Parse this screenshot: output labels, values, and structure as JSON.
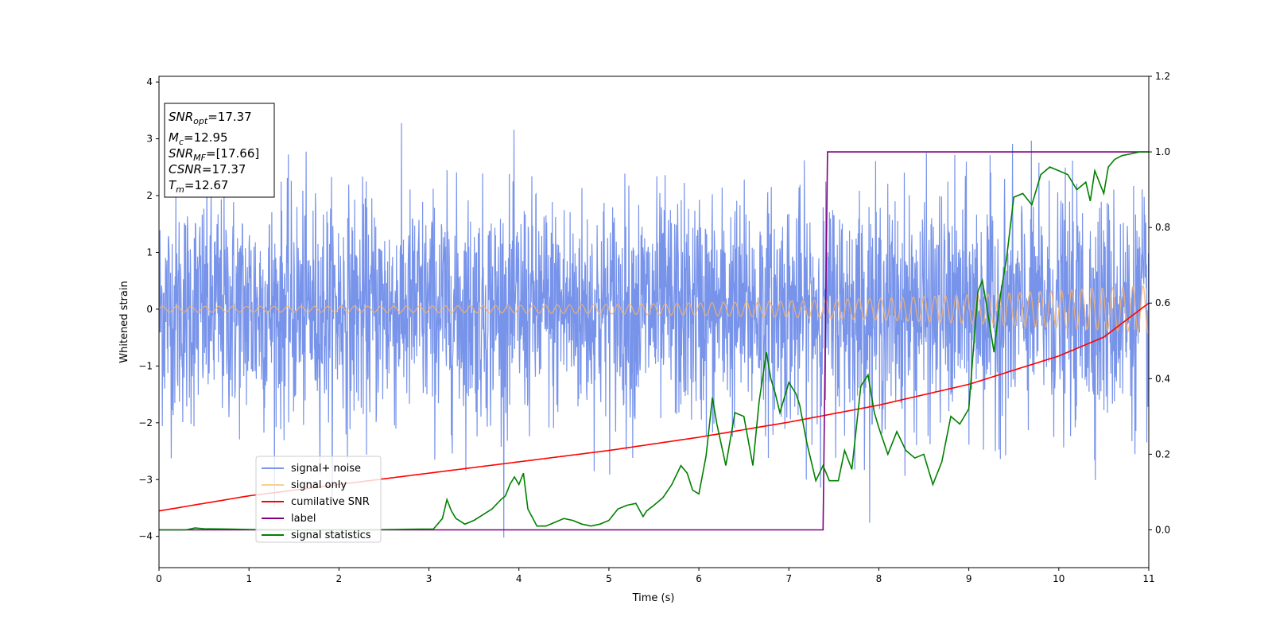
{
  "chart_data": {
    "type": "line",
    "xlabel": "Time (s)",
    "ylabel": "Whitened strain",
    "xlim": [
      0,
      11
    ],
    "ylim": [
      -4.55,
      4.1
    ],
    "y2lim": [
      -0.1,
      1.2
    ],
    "xticks": [
      "0",
      "1",
      "2",
      "3",
      "4",
      "5",
      "6",
      "7",
      "8",
      "9",
      "10",
      "11"
    ],
    "yticks": [
      "4",
      "3",
      "2",
      "1",
      "0",
      "−1",
      "−2",
      "−3",
      "−4"
    ],
    "y2ticks": [
      "1.2",
      "1.0",
      "0.8",
      "0.6",
      "0.4",
      "0.2",
      "0.0"
    ],
    "grid": false,
    "legend_position": "lower-left",
    "stats_box": {
      "lines": [
        {
          "name": "SNR",
          "sub": "opt",
          "value": "=17.37"
        },
        {
          "name": "M",
          "sub": "c",
          "value": "=12.95"
        },
        {
          "name": "SNR",
          "sub": "MF",
          "value": "=[17.66]"
        },
        {
          "name": "CSNR",
          "sub": "",
          "value": "=17.37"
        },
        {
          "name": "T",
          "sub": "m",
          "value": "=12.67"
        }
      ]
    },
    "series": [
      {
        "name": "signal+ noise",
        "color": "#4a6fe3",
        "axis": "left",
        "description": "whitened strain, approx. Gaussian noise, std ~1.0, range about -4.2 to 3.7"
      },
      {
        "name": "signal only",
        "color": "#f6b26b",
        "axis": "left",
        "description": "chirp oscillation, amplitude rising from ~0.05 at t=0 to ~0.42 at t=11"
      },
      {
        "name": "cumilative SNR",
        "color": "#ff0000",
        "axis": "right",
        "x": [
          0,
          1,
          2,
          3,
          4,
          5,
          6,
          7,
          8,
          9,
          10,
          10.5,
          11
        ],
        "values": [
          0.05,
          0.09,
          0.12,
          0.15,
          0.18,
          0.21,
          0.245,
          0.285,
          0.33,
          0.385,
          0.46,
          0.51,
          0.6
        ]
      },
      {
        "name": "label",
        "color": "#800080",
        "axis": "right",
        "x": [
          0,
          7.38,
          7.43,
          11
        ],
        "values": [
          0.0,
          0.0,
          1.0,
          1.0
        ]
      },
      {
        "name": "signal statistics",
        "color": "#008000",
        "axis": "right",
        "x": [
          0.0,
          0.3,
          0.4,
          0.5,
          0.8,
          1.0,
          1.3,
          1.6,
          2.0,
          2.3,
          2.6,
          2.9,
          3.05,
          3.15,
          3.2,
          3.25,
          3.3,
          3.4,
          3.5,
          3.6,
          3.7,
          3.8,
          3.85,
          3.9,
          3.95,
          4.0,
          4.05,
          4.1,
          4.2,
          4.3,
          4.4,
          4.5,
          4.6,
          4.7,
          4.8,
          4.9,
          5.0,
          5.1,
          5.2,
          5.3,
          5.38,
          5.42,
          5.5,
          5.6,
          5.7,
          5.8,
          5.87,
          5.93,
          6.0,
          6.08,
          6.15,
          6.2,
          6.3,
          6.4,
          6.5,
          6.6,
          6.67,
          6.75,
          6.8,
          6.85,
          6.9,
          7.0,
          7.08,
          7.12,
          7.2,
          7.3,
          7.38,
          7.45,
          7.55,
          7.62,
          7.7,
          7.8,
          7.88,
          7.95,
          8.0,
          8.1,
          8.2,
          8.3,
          8.4,
          8.5,
          8.6,
          8.7,
          8.8,
          8.9,
          9.0,
          9.1,
          9.15,
          9.2,
          9.28,
          9.35,
          9.42,
          9.5,
          9.6,
          9.7,
          9.8,
          9.9,
          10.0,
          10.1,
          10.2,
          10.3,
          10.35,
          10.4,
          10.5,
          10.55,
          10.62,
          10.7,
          10.8,
          10.9,
          11.0
        ],
        "values": [
          0.0,
          0.0,
          0.005,
          0.003,
          0.002,
          0.001,
          0.0,
          0.0,
          0.0,
          0.0,
          0.001,
          0.002,
          0.002,
          0.03,
          0.08,
          0.05,
          0.03,
          0.015,
          0.025,
          0.04,
          0.055,
          0.08,
          0.09,
          0.12,
          0.14,
          0.12,
          0.15,
          0.055,
          0.01,
          0.01,
          0.02,
          0.03,
          0.025,
          0.015,
          0.01,
          0.015,
          0.025,
          0.055,
          0.065,
          0.07,
          0.035,
          0.05,
          0.065,
          0.085,
          0.12,
          0.17,
          0.15,
          0.105,
          0.095,
          0.195,
          0.35,
          0.28,
          0.17,
          0.31,
          0.3,
          0.17,
          0.34,
          0.47,
          0.4,
          0.36,
          0.31,
          0.39,
          0.36,
          0.33,
          0.23,
          0.13,
          0.17,
          0.13,
          0.13,
          0.21,
          0.16,
          0.38,
          0.41,
          0.31,
          0.27,
          0.2,
          0.26,
          0.21,
          0.19,
          0.2,
          0.12,
          0.18,
          0.3,
          0.28,
          0.32,
          0.63,
          0.66,
          0.59,
          0.47,
          0.62,
          0.72,
          0.88,
          0.89,
          0.86,
          0.94,
          0.96,
          0.95,
          0.94,
          0.9,
          0.92,
          0.87,
          0.95,
          0.89,
          0.96,
          0.98,
          0.99,
          0.995,
          1.0,
          1.0
        ]
      }
    ]
  }
}
